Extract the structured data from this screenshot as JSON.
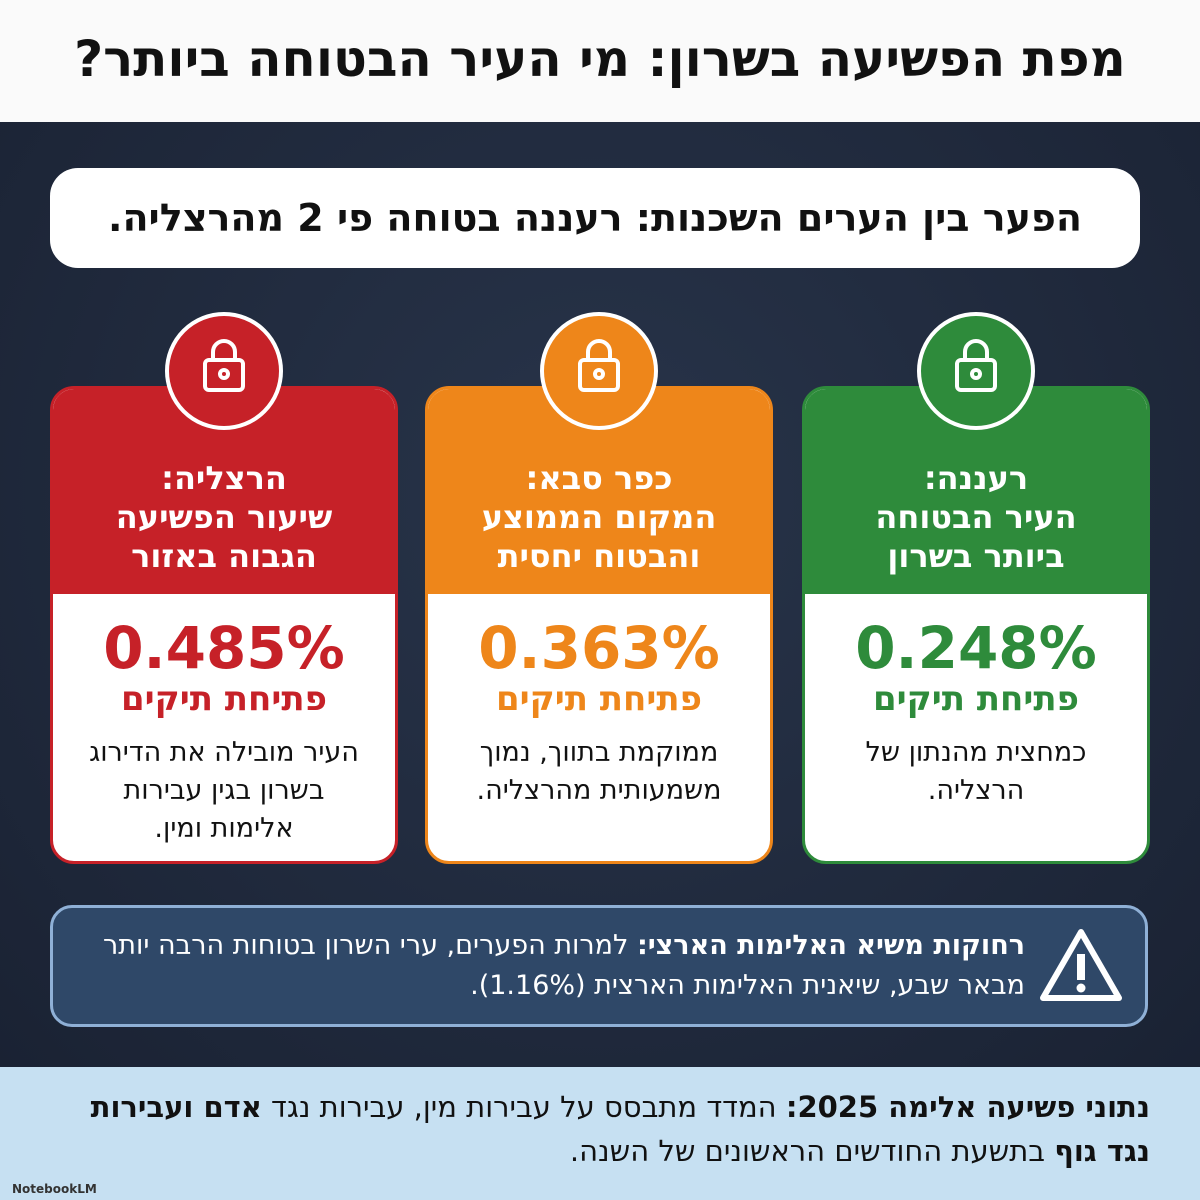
{
  "header": {
    "title": "מפת הפשיעה בשרון: מי העיר הבטוחה ביותר?"
  },
  "subtitle": "הפער בין הערים השכנות: רעננה בטוחה פי 2 מהרצליה.",
  "cards": [
    {
      "color": "#c62128",
      "heading": [
        "הרצליה:",
        "שיעור הפשיעה",
        "הגבוה באזור"
      ],
      "value": "0.485%",
      "metric": "פתיחת תיקים",
      "description": "העיר מובילה את הדירוג בשרון בגין עבירות אלימות ומין."
    },
    {
      "color": "#ee861a",
      "heading": [
        "כפר סבא:",
        "המקום הממוצע",
        "והבטוח יחסית"
      ],
      "value": "0.363%",
      "metric": "פתיחת תיקים",
      "description": "ממוקמת בתווך, נמוך משמעותית מהרצליה."
    },
    {
      "color": "#2e8b3b",
      "heading": [
        "רעננה:",
        "העיר הבטוחה",
        "ביותר בשרון"
      ],
      "value": "0.248%",
      "metric": "פתיחת תיקים",
      "description": "כמחצית מהנתון של הרצליה."
    }
  ],
  "warning": {
    "lead": "רחוקות משיא האלימות הארצי:",
    "text": "למרות הפערים, ערי השרון בטוחות הרבה יותר מבאר שבע, שיאנית האלימות הארצית (1.16%)."
  },
  "footer": {
    "segments": [
      {
        "text": "נתוני פשיעה אלימה 2025:",
        "bold": true
      },
      {
        "text": " המדד מתבסס על עבירות מין, עבירות נגד ",
        "bold": false
      },
      {
        "text": "אדם ועבירות נגד גוף",
        "bold": true
      },
      {
        "text": " בתשעת החודשים הראשונים של השנה.",
        "bold": false
      }
    ],
    "brand": "NotebookLM"
  }
}
